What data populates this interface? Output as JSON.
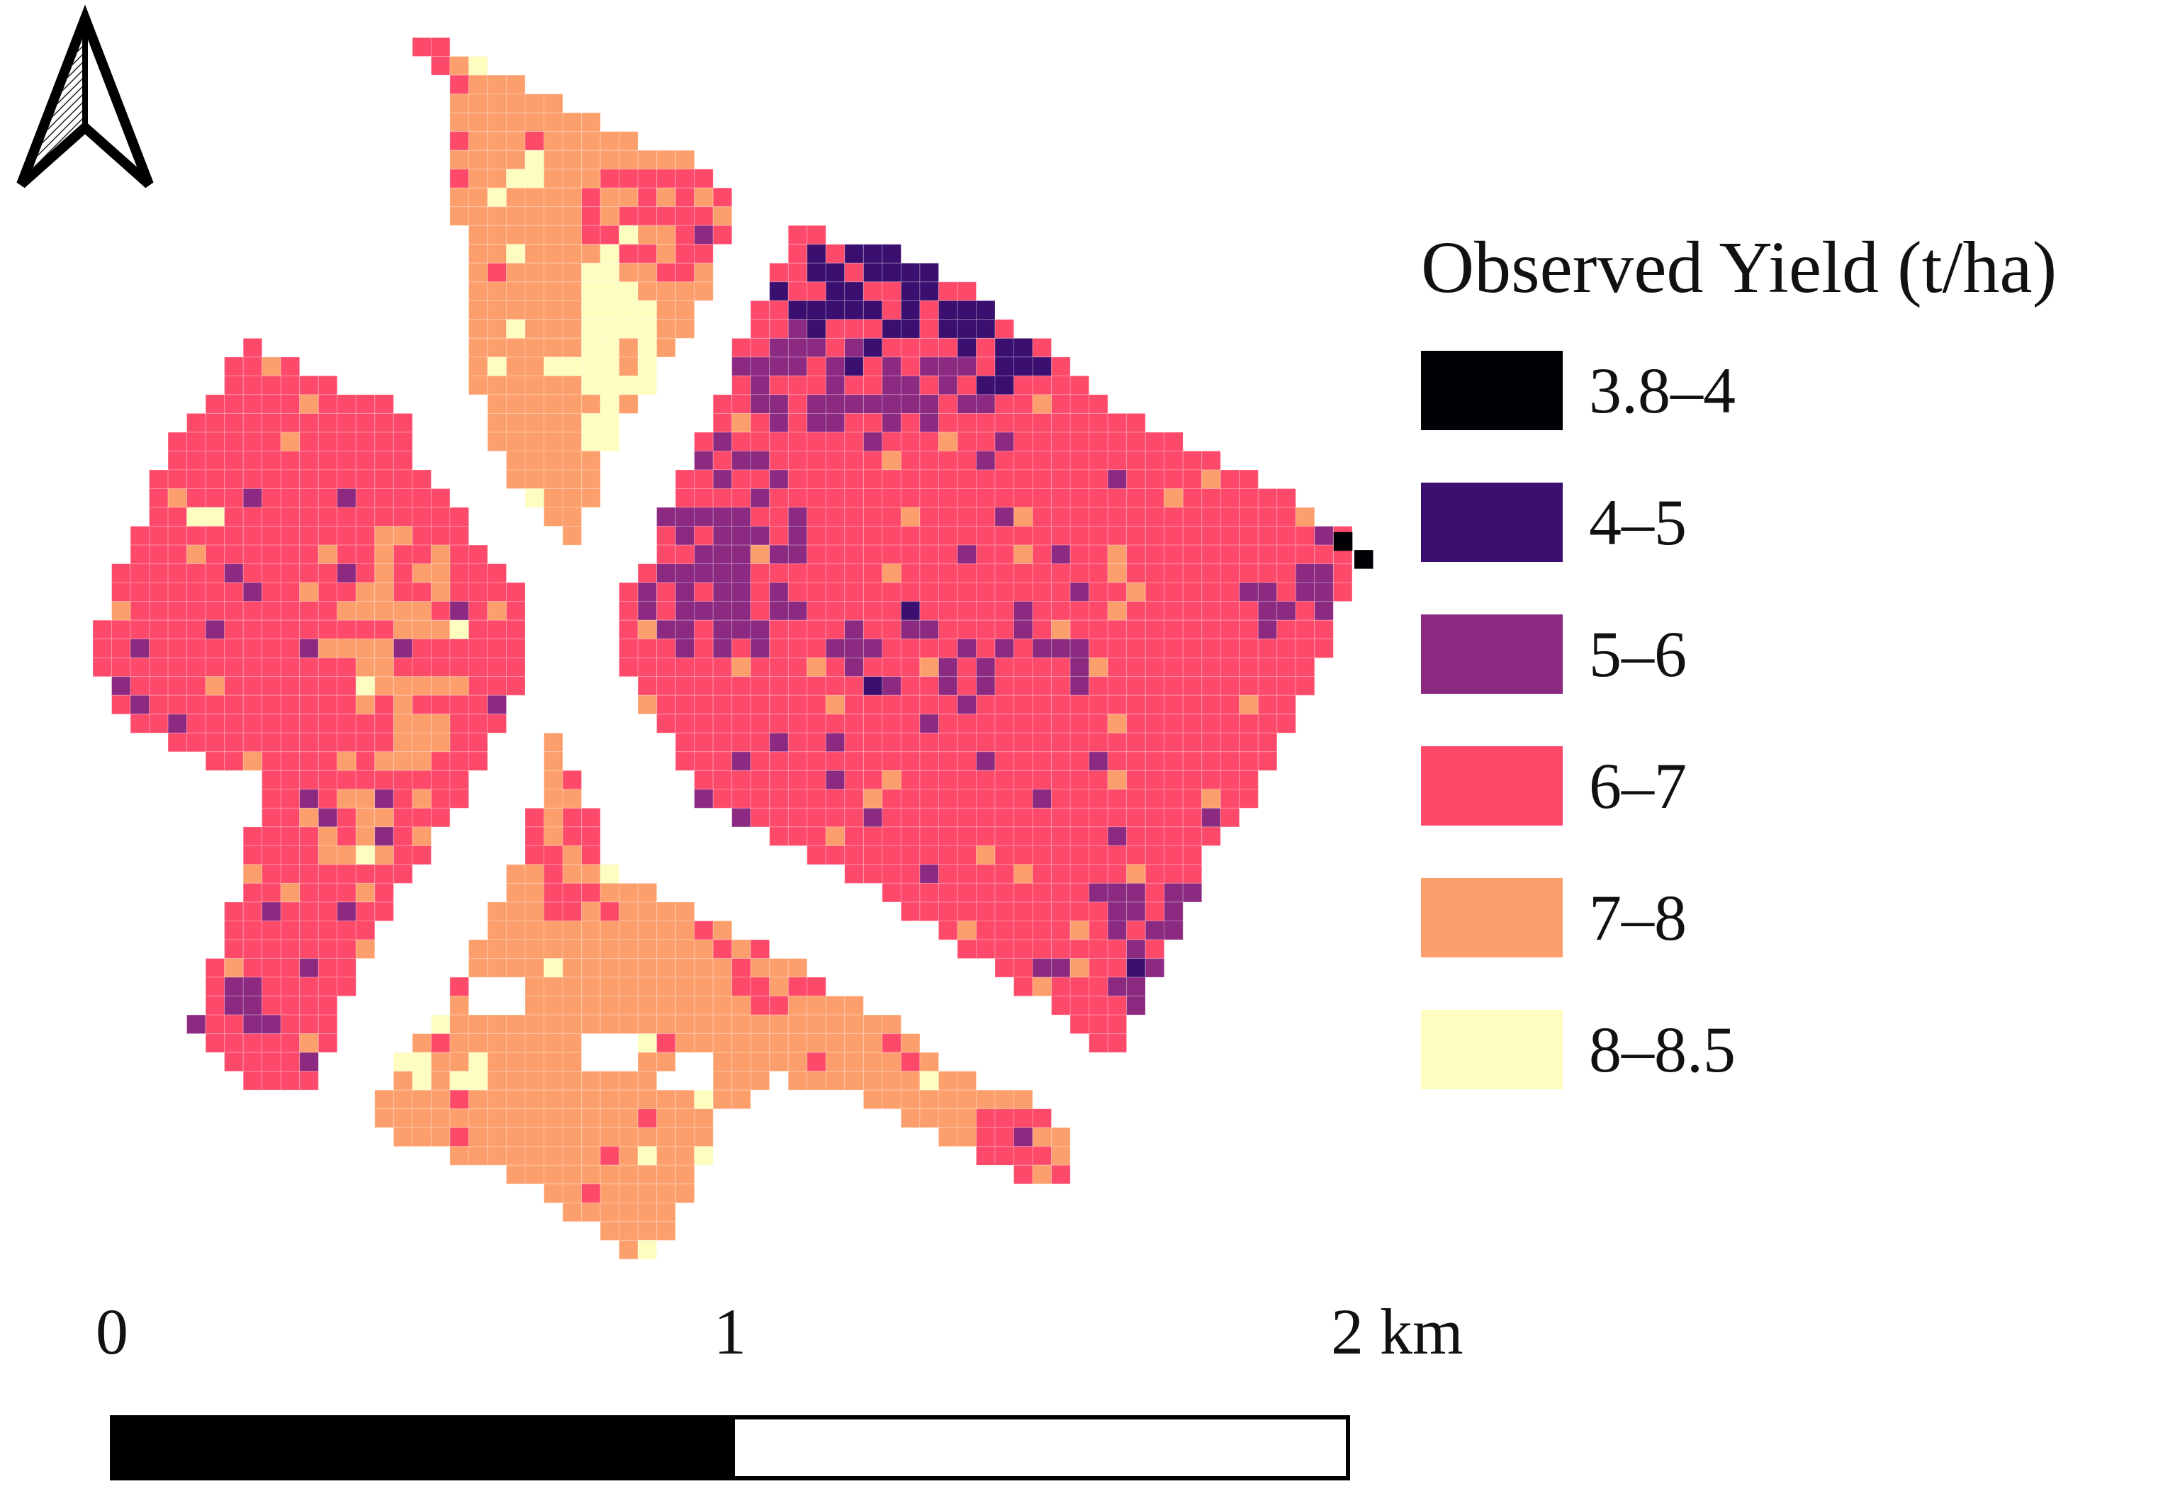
{
  "legend": {
    "title": "Observed Yield (t/ha)",
    "classes": [
      {
        "label": "3.8–4",
        "color": "#000004"
      },
      {
        "label": "4–5",
        "color": "#3b0f70"
      },
      {
        "label": "5–6",
        "color": "#8c2981"
      },
      {
        "label": "6–7",
        "color": "#fe4a6a"
      },
      {
        "label": "7–8",
        "color": "#fd9f6c"
      },
      {
        "label": "8–8.5",
        "color": "#fcfdbf"
      }
    ]
  },
  "scale_bar": {
    "labels": [
      "0",
      "1",
      "2 km"
    ]
  },
  "north_arrow": {
    "icon": "north-arrow-icon"
  },
  "colors": {
    "grid_line": "#ffffff",
    "bar_dark": "#000000",
    "bar_light": "#ffffff"
  }
}
